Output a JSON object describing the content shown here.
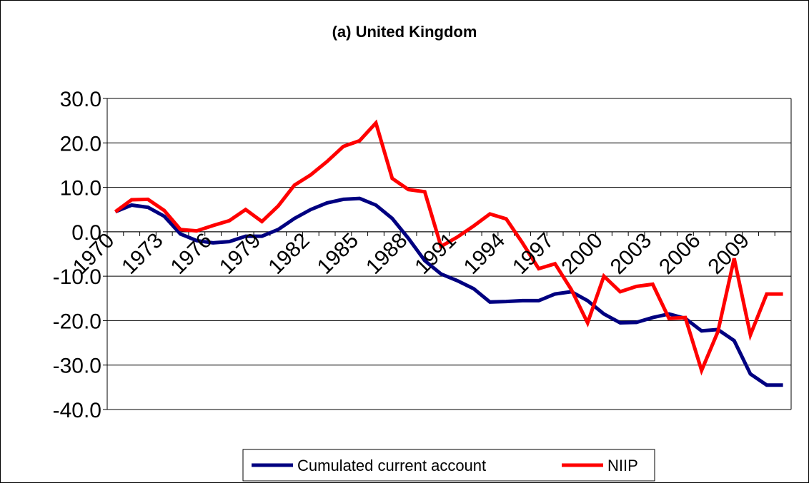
{
  "chart_data": {
    "type": "line",
    "title": "(a) United Kingdom",
    "xlabel": "",
    "ylabel": "",
    "ylim": [
      -40,
      30
    ],
    "yticks": [
      "30.0",
      "20.0",
      "10.0",
      "0.0",
      "-10.0",
      "-20.0",
      "-30.0",
      "-40.0"
    ],
    "ytick_values": [
      30,
      20,
      10,
      0,
      -10,
      -20,
      -30,
      -40
    ],
    "x": [
      1970,
      1971,
      1972,
      1973,
      1974,
      1975,
      1976,
      1977,
      1978,
      1979,
      1980,
      1981,
      1982,
      1983,
      1984,
      1985,
      1986,
      1987,
      1988,
      1989,
      1990,
      1991,
      1992,
      1993,
      1994,
      1995,
      1996,
      1997,
      1998,
      1999,
      2000,
      2001,
      2002,
      2003,
      2004,
      2005,
      2006,
      2007,
      2008,
      2009,
      2010,
      2011
    ],
    "xticks": [
      "1970",
      "1973",
      "1976",
      "1979",
      "1982",
      "1985",
      "1988",
      "1991",
      "1994",
      "1997",
      "2000",
      "2003",
      "2006",
      "2009"
    ],
    "grid": true,
    "legend_position": "bottom",
    "series": [
      {
        "name": "Cumulated current account",
        "color": "#000080",
        "values": [
          4.5,
          6.0,
          5.5,
          3.5,
          -0.5,
          -2.0,
          -2.5,
          -2.2,
          -1.0,
          -1.0,
          0.5,
          3.0,
          5.0,
          6.5,
          7.3,
          7.5,
          6.0,
          3.0,
          -1.5,
          -6.5,
          -9.5,
          -11.0,
          -12.8,
          -15.8,
          -15.7,
          -15.5,
          -15.5,
          -14.0,
          -13.5,
          -15.5,
          -18.5,
          -20.5,
          -20.4,
          -19.3,
          -18.5,
          -19.5,
          -22.3,
          -22.0,
          -24.5,
          -32.0,
          -34.5,
          -34.5
        ]
      },
      {
        "name": "NIIP",
        "color": "#ff0000",
        "values": [
          4.5,
          7.2,
          7.3,
          4.8,
          0.5,
          0.2,
          1.4,
          2.5,
          5.0,
          2.3,
          5.8,
          10.5,
          12.8,
          15.8,
          19.2,
          20.5,
          24.5,
          12.0,
          9.5,
          9.0,
          -3.3,
          -1.2,
          1.3,
          4.0,
          2.9,
          -2.5,
          -8.3,
          -7.2,
          -13.0,
          -20.5,
          -10.0,
          -13.5,
          -12.3,
          -11.8,
          -19.5,
          -19.3,
          -31.2,
          -22.5,
          -6.0,
          -23.2,
          -14.0,
          -14.0
        ]
      }
    ]
  }
}
